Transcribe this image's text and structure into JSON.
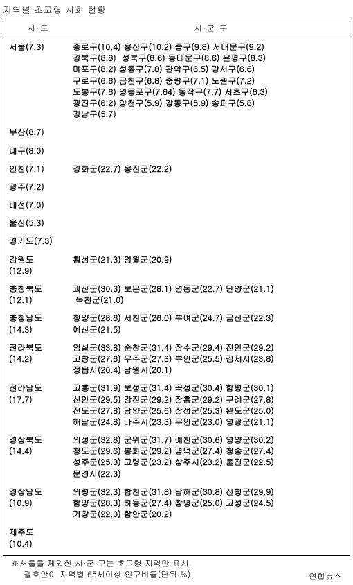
{
  "title": "지역별 초고령 사회 현황",
  "header": {
    "sido": "시·도",
    "sigungu": "시·군·구"
  },
  "rows": [
    {
      "sido": "서울(7.3)",
      "sigungu": "종로구(10.4) 용산구(10.2) 중구(9.8) 서대문구(9.2)\n강북구(8.8)  성북구(8.6) 동대문구(8.6) 은평구(8.3)\n마포구(8.2) 성동구(7.8) 관악구(6.5) 강서구(6.6)\n구로구(6.6) 금천구(6.8) 중랑구(7.1) 노원구(7.2)\n도봉구(7.6) 영등포구(7.64) 동작구(7.7) 서초구(6.3)\n광진구(6.2) 양천구(5.9) 강동구(5.9) 송파구(5.8)\n강남구(5.7)"
    },
    {
      "sido": "부산(8.7)",
      "sigungu": ""
    },
    {
      "sido": "대구(8.0)",
      "sigungu": ""
    },
    {
      "sido": "인천(7.1)",
      "sigungu": "강화군(22.7) 옹진군(22.2)"
    },
    {
      "sido": "광주(7.2)",
      "sigungu": ""
    },
    {
      "sido": "대전(7.0)",
      "sigungu": ""
    },
    {
      "sido": "울산(5.3)",
      "sigungu": ""
    },
    {
      "sido": "경기도(7.3)",
      "sigungu": ""
    },
    {
      "sido": "강원도\n(12.9)",
      "sigungu": "횡성군(21.3) 영월군(20.9)"
    },
    {
      "sido": "충청북도\n(12.1)",
      "sigungu": "괴산군(30.3) 보은군(28.1) 영동군(22.7) 단양군(21.1)\n 옥천군(21.0)"
    },
    {
      "sido": "충청남도\n(14.3)",
      "sigungu": "청양군(28.6) 서천군(26.0) 부여군(24.7) 금산군(22.3)\n예산군(21.5)"
    },
    {
      "sido": "전라북도\n(14.2)",
      "sigungu": "임실군(33.8) 순창군(31.4) 장수군(29.4) 진안군(29.2)\n고창군(27.6) 무주군(27.3) 부안군(25.5) 김제시(23.8)\n정읍시(20.4) 남원시(20.1)"
    },
    {
      "sido": "전라남도\n(17.7)",
      "sigungu": "고흥군(31.9) 보성군(31.4) 곡성군(30.4) 함평군(30.1)\n신안군(29.5) 강진군(29.2) 장흥군(29.2) 구례군(27.8)\n진도군(27.8) 담양군(25.6) 장성군(25.3) 완도군(25.0)\n해남군(24.8) 나주시(23.3) 무안군(23.0) 영광군(21.1)"
    },
    {
      "sido": "경상북도\n(14.4)",
      "sigungu": "의성군(32.8) 군위군(31.7) 예천군(30.6) 영양군(30.2)\n청도군(29.6) 봉화군(29.2) 영덕군(27.4) 청송군(27.4)\n성주군(25.3) 고령군(23.2) 상주시(23.2) 울진군(22.5)\n문경시(22.3)"
    },
    {
      "sido": "경상남도\n(10.9)",
      "sigungu": "의령군(32.3) 합천군(31.8) 남해군(30.8) 산청군(29.9)\n함양군(28.3) 하동군(27.4) 창녕군(25.0) 고성군(24.5)\n거창군(22.0) 함안군(20.2)"
    },
    {
      "sido": "제주도\n(10.4)",
      "sigungu": ""
    }
  ],
  "footnote1": "※서울을 제외한 시·군·구는 초고령 지역만 표시.",
  "footnote2": "괄호안이 지역별 65세이상 인구비율(단위:%).",
  "source": "연합뉴스"
}
